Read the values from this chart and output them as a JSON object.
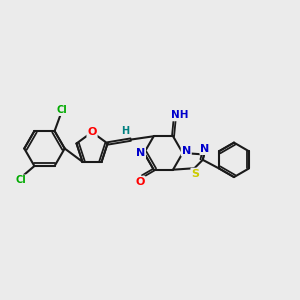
{
  "bg_color": "#ebebeb",
  "bond_color": "#1a1a1a",
  "atom_colors": {
    "O": "#ff0000",
    "N": "#0000cc",
    "S": "#cccc00",
    "Cl": "#00aa00",
    "C": "#1a1a1a",
    "H": "#008080"
  }
}
